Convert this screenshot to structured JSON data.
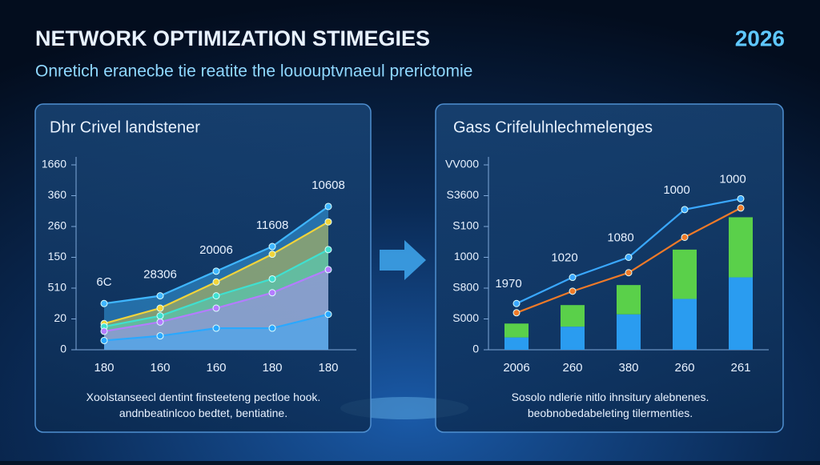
{
  "header": {
    "title": "NETWORK OPTIMIZATION STIMEGIES",
    "year": "2026",
    "subtitle": "Onretich eranecbe tie reatite the lououptvnaeul prerictomie"
  },
  "chart_data": [
    {
      "type": "area",
      "title": "Dhr Crivel landstener",
      "caption": "Xoolstanseecl dentint finsteeteng pectloe hook. andnbeatinlcoo bedtet, bentiatine.",
      "categories": [
        "180",
        "160",
        "160",
        "180",
        "180"
      ],
      "ylim": [
        0,
        120
      ],
      "yticks": [
        0,
        20,
        {
          "value": 40,
          "label": "510"
        },
        {
          "value": 60,
          "label": "150"
        },
        {
          "value": 80,
          "label": "260"
        },
        {
          "value": 100,
          "label": "360"
        },
        {
          "value": 120,
          "label": "1660"
        }
      ],
      "series": [
        {
          "color": "#3fb6ff",
          "values": [
            30,
            35,
            51,
            67,
            93
          ]
        },
        {
          "color": "#f2d43a",
          "values": [
            17,
            27,
            44,
            62,
            83
          ]
        },
        {
          "color": "#3fe0d0",
          "values": [
            15,
            22,
            35,
            46,
            65
          ]
        },
        {
          "color": "#b47cff",
          "values": [
            12,
            18,
            27,
            37,
            52
          ]
        },
        {
          "color": "#2aa8ff",
          "values": [
            6,
            9,
            14,
            14,
            23
          ]
        }
      ],
      "annotations": [
        "6C",
        "28306",
        "20006",
        "11608",
        "10608"
      ]
    },
    {
      "type": "bar",
      "title": "Gass Crifelulnlechmelenges",
      "caption": "Sosolo ndlerie nitlo ihnsitury alebnenes. beobnobedabeleting tilermenties.",
      "categories": [
        "2006",
        "260",
        "380",
        "260",
        "261"
      ],
      "ylim": [
        0,
        120
      ],
      "yticks": [
        0,
        {
          "value": 20,
          "label": "S000"
        },
        {
          "value": 40,
          "label": "S800"
        },
        {
          "value": 60,
          "label": "1000"
        },
        {
          "value": 80,
          "label": "S100"
        },
        {
          "value": 100,
          "label": "S3600"
        },
        {
          "value": 120,
          "label": "VV000"
        }
      ],
      "series": [
        {
          "type": "bar",
          "color": "#2a9cf0",
          "values": [
            8,
            15,
            23,
            33,
            47
          ]
        },
        {
          "type": "bar",
          "color": "#5ad04a",
          "values": [
            9,
            14,
            19,
            32,
            39
          ]
        },
        {
          "type": "line",
          "color": "#3aa8ff",
          "values": [
            30,
            47,
            60,
            91,
            98
          ]
        },
        {
          "type": "line",
          "color": "#f07a28",
          "values": [
            24,
            38,
            50,
            73,
            92
          ]
        }
      ],
      "annotations": [
        "1970",
        "1020",
        "1080",
        "1000",
        "1000"
      ]
    }
  ]
}
